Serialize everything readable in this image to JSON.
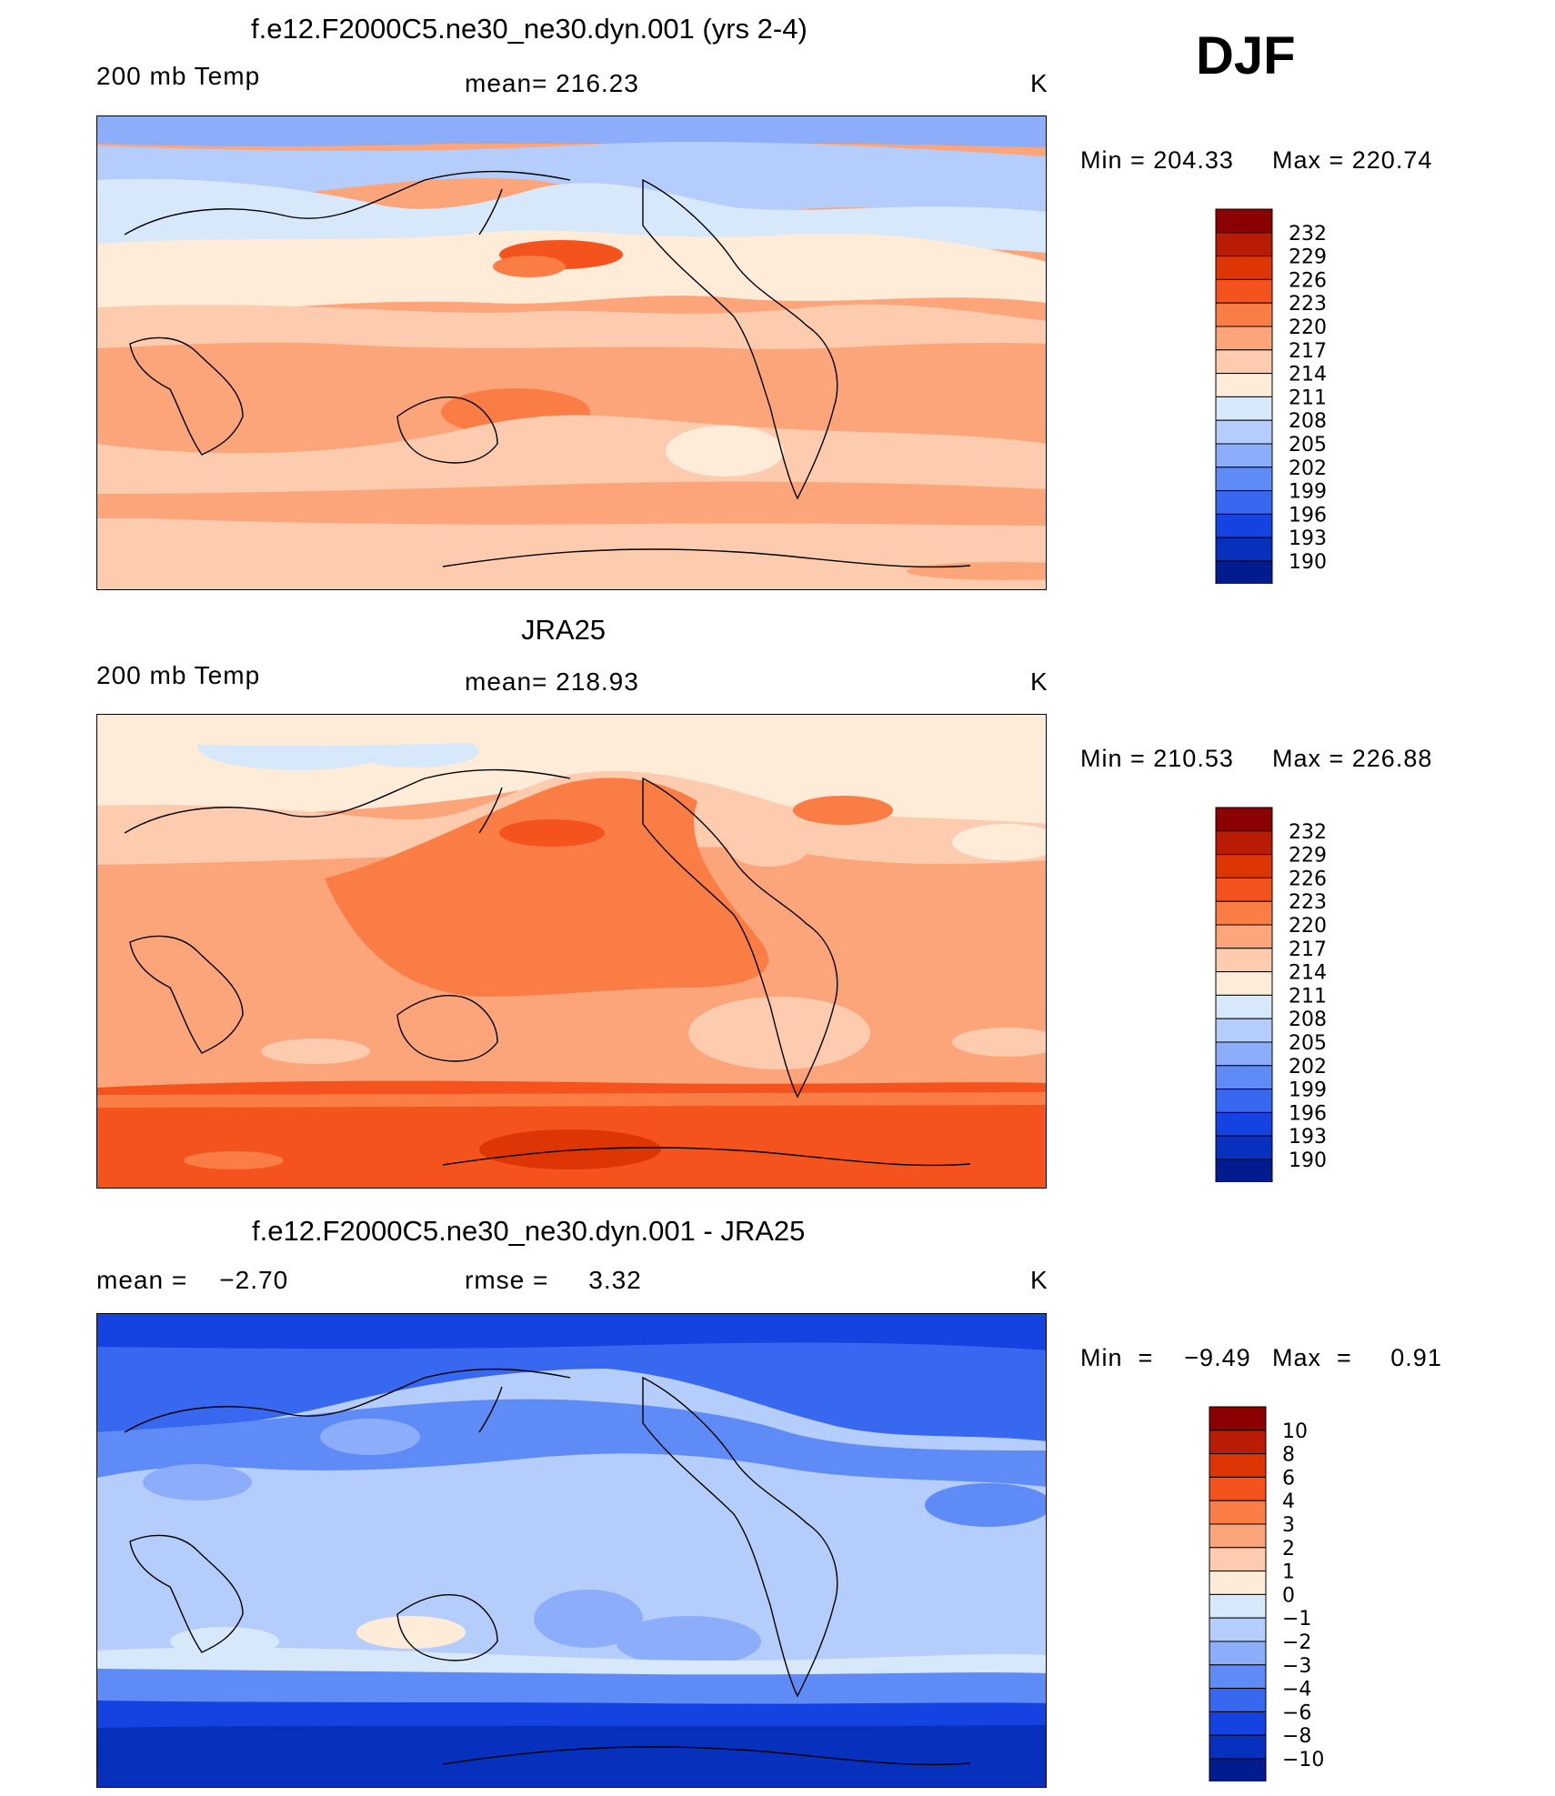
{
  "season": "DJF",
  "panels": [
    {
      "title": "f.e12.F2000C5.ne30_ne30.dyn.001 (yrs 2-4)",
      "left_label": "200 mb Temp",
      "center_label": "mean=  216.23",
      "units": "K",
      "min_label": "Min  =  204.33",
      "max_label": "Max  =  220.74",
      "colorbar_ticks": [
        "232",
        "229",
        "226",
        "223",
        "220",
        "217",
        "214",
        "211",
        "208",
        "205",
        "202",
        "199",
        "196",
        "193",
        "190"
      ]
    },
    {
      "title": "JRA25",
      "left_label": "200 mb Temp",
      "center_label": "mean=  218.93",
      "units": "K",
      "min_label": "Min  =  210.53",
      "max_label": "Max  =  226.88",
      "colorbar_ticks": [
        "232",
        "229",
        "226",
        "223",
        "220",
        "217",
        "214",
        "211",
        "208",
        "205",
        "202",
        "199",
        "196",
        "193",
        "190"
      ]
    },
    {
      "title": "f.e12.F2000C5.ne30_ne30.dyn.001 - JRA25",
      "left_label": "mean =    −2.70",
      "center_label": "rmse =     3.32",
      "units": "K",
      "min_label": "Min  =    −9.49",
      "max_label": "Max  =     0.91",
      "colorbar_ticks": [
        "10",
        "8",
        "6",
        "4",
        "3",
        "2",
        "1",
        "0",
        "−1",
        "−2",
        "−3",
        "−4",
        "−6",
        "−8",
        "−10"
      ]
    }
  ],
  "colorbar_colors": [
    "#8b0000",
    "#b81c04",
    "#dd3504",
    "#f5531e",
    "#fb7d46",
    "#fca57a",
    "#fdcbae",
    "#feebd8",
    "#d8e8fb",
    "#b4cdfa",
    "#8caefa",
    "#5f8bf7",
    "#3868f0",
    "#1543e2",
    "#0730bd",
    "#021b8f"
  ]
}
